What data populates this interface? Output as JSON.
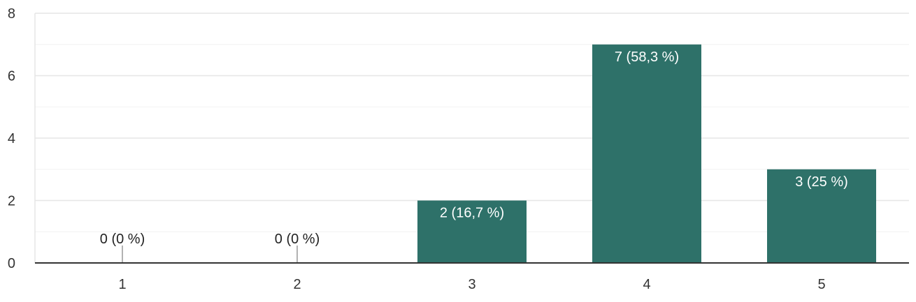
{
  "chart_data": {
    "type": "bar",
    "categories": [
      "1",
      "2",
      "3",
      "4",
      "5"
    ],
    "values": [
      0,
      0,
      2,
      7,
      3
    ],
    "data_labels": [
      "0 (0 %)",
      "0 (0 %)",
      "2 (16,7 %)",
      "7 (58,3 %)",
      "3 (25 %)"
    ],
    "y_ticks": [
      "0",
      "2",
      "4",
      "6",
      "8"
    ],
    "ylim": [
      0,
      8
    ],
    "y_minor_step": 1,
    "grid": true,
    "legend": "none",
    "title": "",
    "xlabel": "",
    "ylabel": "",
    "colors": {
      "bar": "#2e7169",
      "grid": "#e6e6e6",
      "axis": "#333333",
      "label_inside": "#ffffff",
      "label_outside": "#222222",
      "zero_tick": "#999999"
    }
  }
}
